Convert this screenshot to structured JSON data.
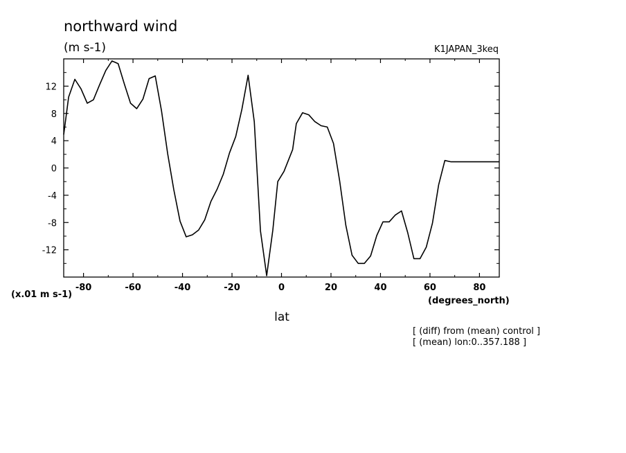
{
  "chart_data": {
    "type": "line",
    "title": "northward wind",
    "units": "(m s-1)",
    "experiment": "K1JAPAN_3keq",
    "scale_note": "(x.01 m s-1)",
    "xunits": "(degrees_north)",
    "xlabel": "lat",
    "notes": [
      "[ (diff) from (mean) control ]",
      "[ (mean) lon:0..357.188 ]"
    ],
    "xlim": [
      -88,
      88
    ],
    "ylim": [
      -16,
      16
    ],
    "xticks": [
      -80,
      -60,
      -40,
      -20,
      0,
      20,
      40,
      60,
      80
    ],
    "xtick_labels": [
      "-80",
      "-60",
      "-40",
      "-20",
      "0",
      "20",
      "40",
      "60",
      "80"
    ],
    "yticks": [
      -12,
      -8,
      -4,
      0,
      4,
      8,
      12
    ],
    "ytick_labels": [
      "-12",
      "-8",
      "-4",
      "0",
      "4",
      "8",
      "12"
    ],
    "grid": false,
    "series": [
      {
        "x": [
          -88,
          -86,
          -83.5,
          -81,
          -78.5,
          -76,
          -73.5,
          -71,
          -68.5,
          -66,
          -63.5,
          -61,
          -58.5,
          -56,
          -53.5,
          -51,
          -48.5,
          -46,
          -43.5,
          -41,
          -38.5,
          -36,
          -33.5,
          -31,
          -28.5,
          -26,
          -23.5,
          -21,
          -18.5,
          -16,
          -13.5,
          -11,
          -8.5,
          -6,
          -3.5,
          -1.5,
          1,
          4.5,
          6,
          8.5,
          11,
          13.5,
          16,
          18.5,
          21,
          23.5,
          26,
          28.5,
          31,
          33.5,
          36,
          38.5,
          41,
          43.5,
          46,
          48.5,
          51,
          53.5,
          56,
          58.5,
          61,
          63.5,
          66,
          68.5,
          71,
          73.5,
          76,
          78.5,
          81,
          83.5,
          86,
          88
        ],
        "y": [
          4.9,
          10.4,
          13.0,
          11.6,
          9.5,
          10.0,
          12.2,
          14.3,
          15.7,
          15.3,
          12.3,
          9.5,
          8.7,
          10.1,
          13.1,
          13.5,
          8.4,
          2.1,
          -3.2,
          -7.8,
          -10.1,
          -9.8,
          -9.1,
          -7.6,
          -4.9,
          -3.1,
          -0.9,
          2.2,
          4.6,
          8.6,
          13.6,
          6.8,
          -9.2,
          -15.8,
          -9.1,
          -2.0,
          -0.5,
          2.7,
          6.5,
          8.1,
          7.8,
          6.8,
          6.2,
          6.0,
          3.6,
          -1.9,
          -8.4,
          -12.8,
          -14.0,
          -14.0,
          -12.9,
          -9.9,
          -7.9,
          -7.9,
          -6.9,
          -6.3,
          -9.5,
          -13.3,
          -13.3,
          -11.6,
          -8.1,
          -2.5,
          1.1,
          0.9,
          0.9,
          0.9,
          0.9,
          0.9,
          0.9,
          0.9,
          0.9,
          0.9
        ]
      }
    ]
  }
}
